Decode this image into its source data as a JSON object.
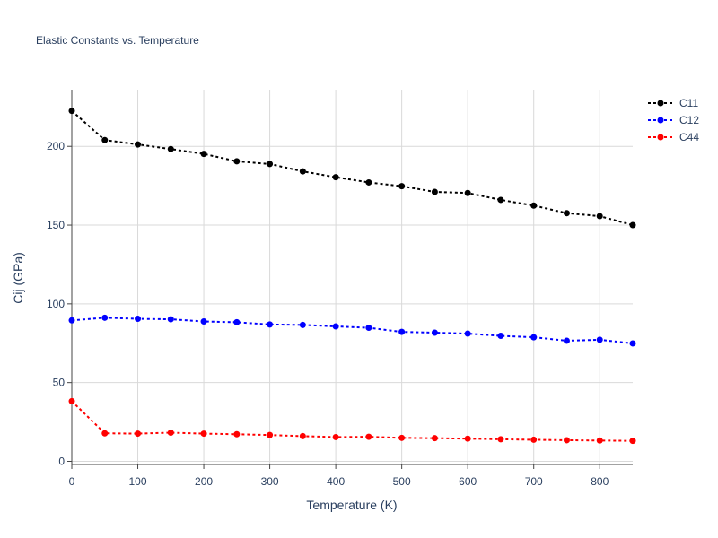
{
  "chart_data": {
    "type": "line",
    "title": "Elastic Constants vs. Temperature",
    "xlabel": "Temperature (K)",
    "ylabel": "Cij (GPa)",
    "xlim": [
      0,
      850
    ],
    "ylim": [
      -2,
      236
    ],
    "xticks": [
      0,
      100,
      200,
      300,
      400,
      500,
      600,
      700,
      800
    ],
    "yticks": [
      0,
      50,
      100,
      150,
      200
    ],
    "grid": true,
    "legend_position": "top-right",
    "x": [
      0,
      50,
      100,
      150,
      200,
      250,
      300,
      350,
      400,
      450,
      500,
      550,
      600,
      650,
      700,
      750,
      800,
      850
    ],
    "series": [
      {
        "name": "C11",
        "color": "#000000",
        "values": [
          222.5,
          204,
          201.2,
          198.3,
          195.2,
          190.5,
          188.8,
          184.1,
          180.4,
          177.1,
          174.7,
          171.1,
          170.4,
          166,
          162.4,
          157.6,
          155.7,
          150
        ]
      },
      {
        "name": "C12",
        "color": "#0000ff",
        "values": [
          89.5,
          91.2,
          90.5,
          90.2,
          88.8,
          88.3,
          86.9,
          86.6,
          85.7,
          84.8,
          82.2,
          81.7,
          81.1,
          79.7,
          78.8,
          76.6,
          77.2,
          74.9
        ]
      },
      {
        "name": "C44",
        "color": "#ff0000",
        "values": [
          38.2,
          17.8,
          17.6,
          18.2,
          17.6,
          17.2,
          16.7,
          16,
          15.4,
          15.6,
          14.9,
          14.7,
          14.4,
          14,
          13.7,
          13.4,
          13.2,
          13
        ]
      }
    ]
  }
}
